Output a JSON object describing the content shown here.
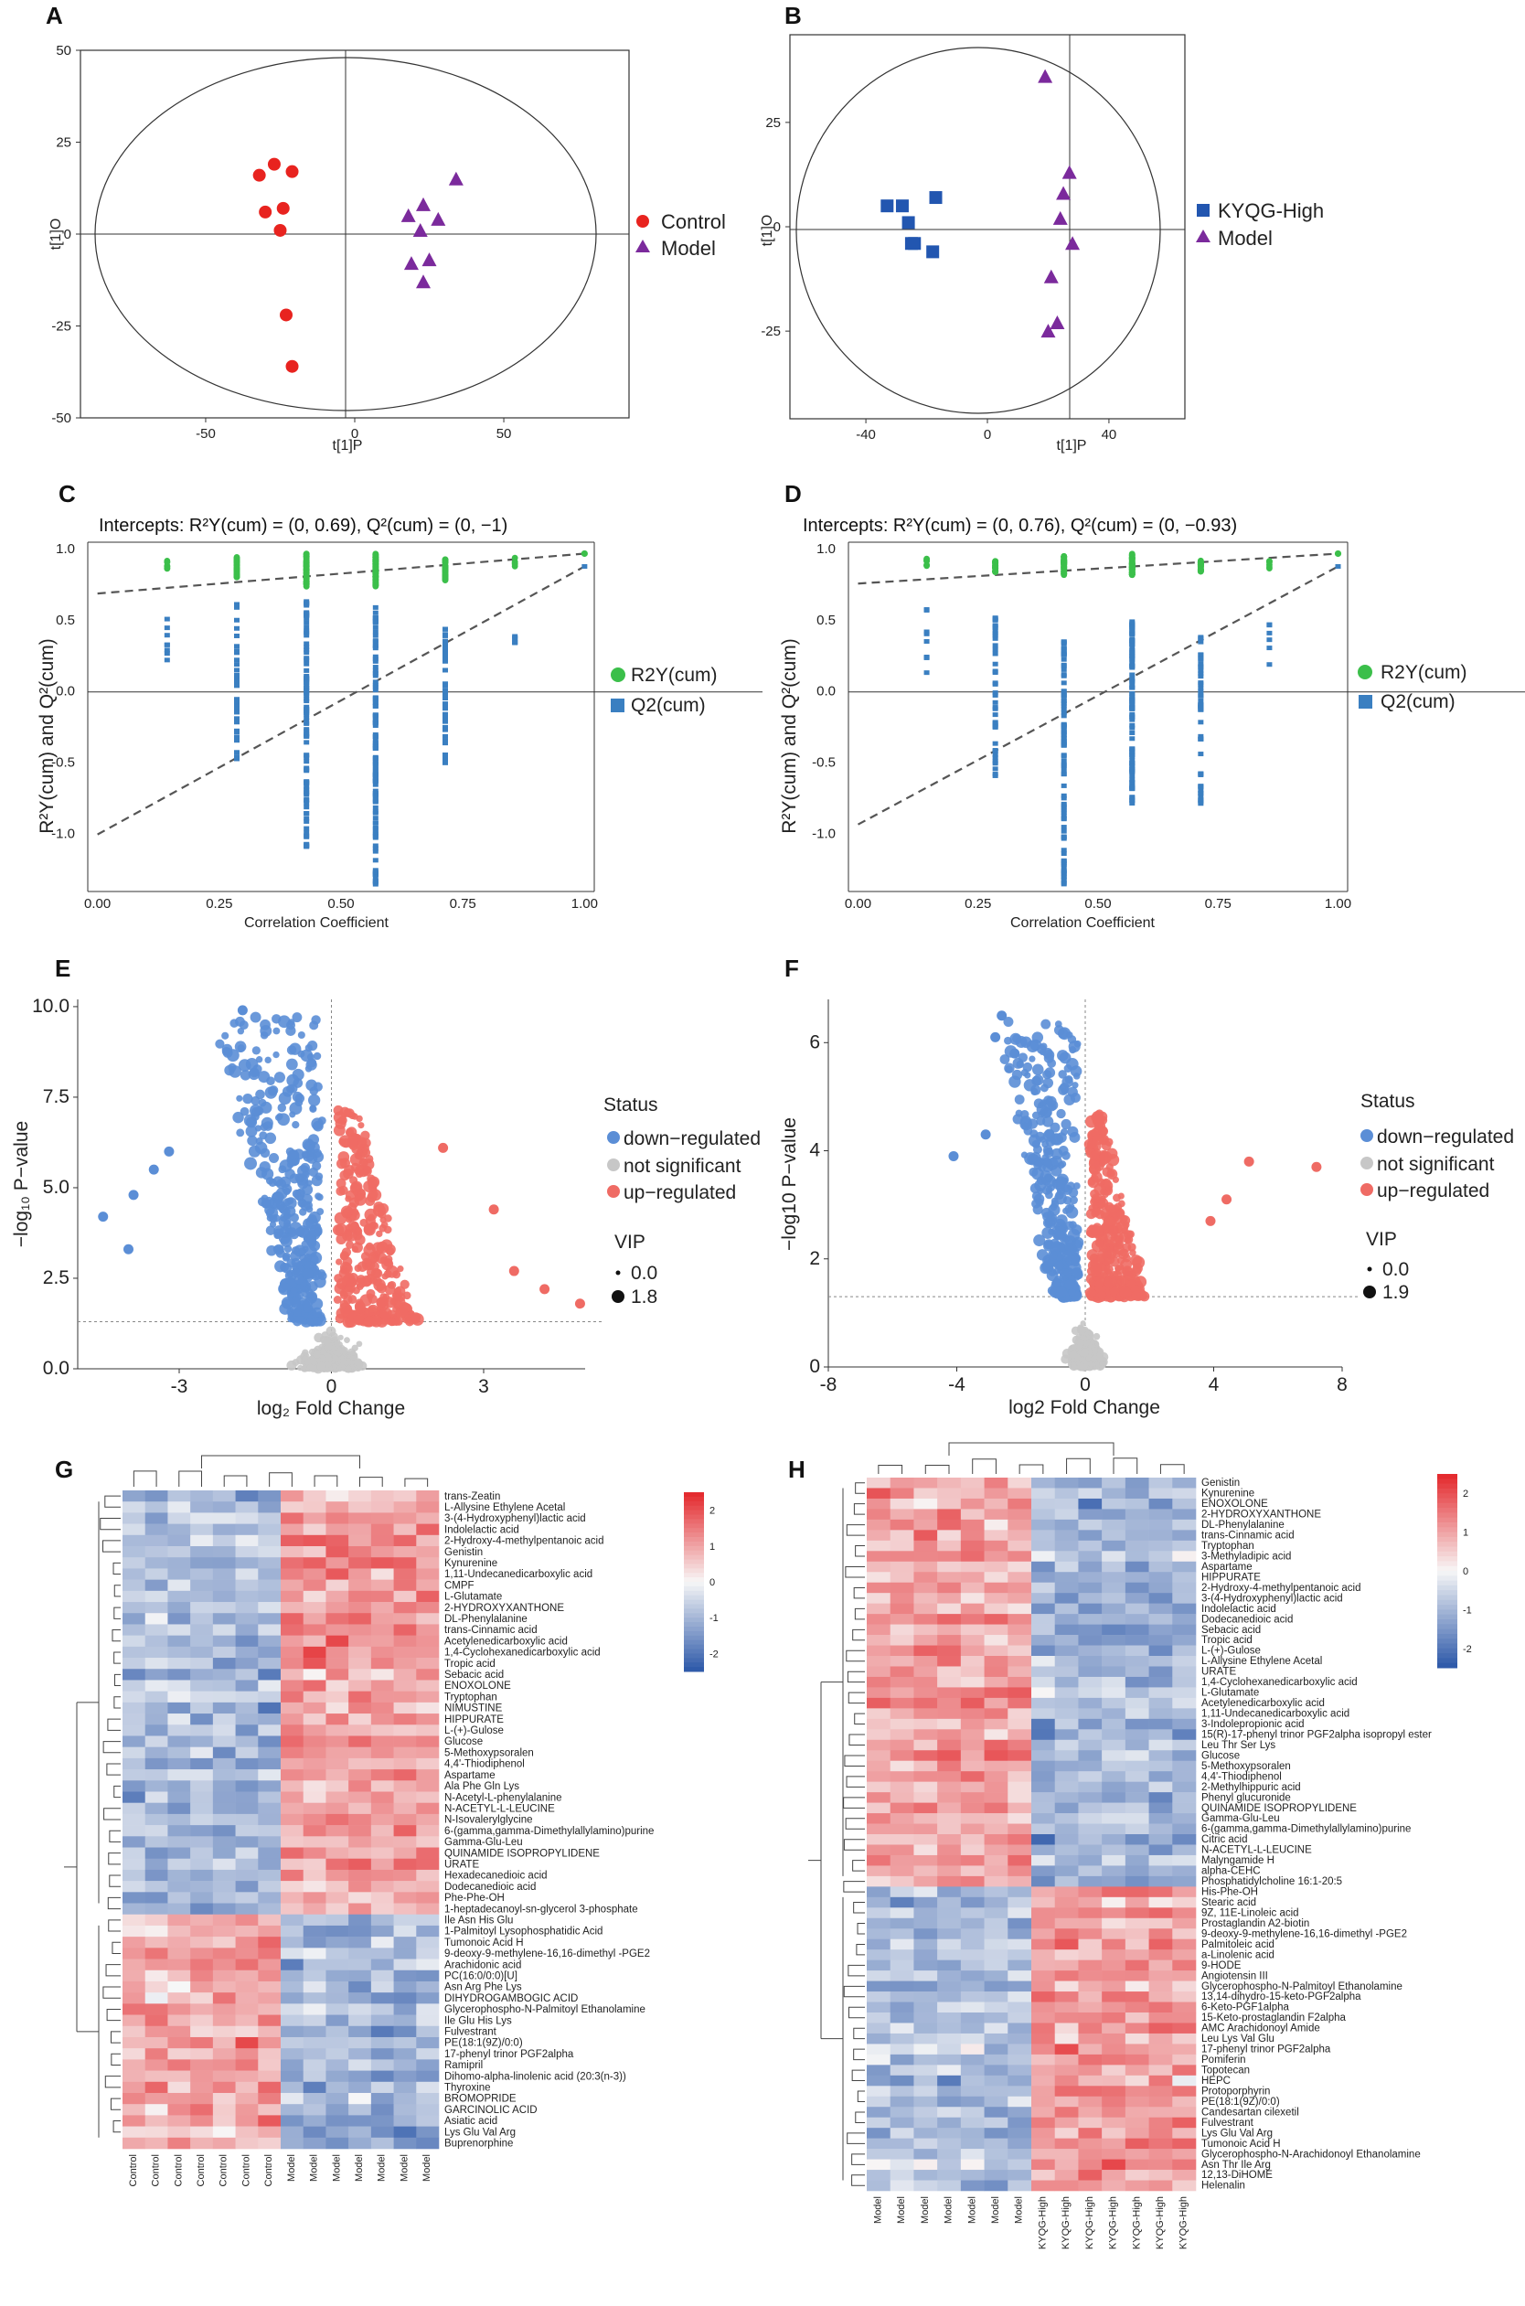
{
  "figure": {
    "panels": [
      "A",
      "B",
      "C",
      "D",
      "E",
      "F",
      "G",
      "H"
    ]
  },
  "colors": {
    "control": "#e8231f",
    "model": "#7b2a9c",
    "kyqg": "#2256b0",
    "r2y": "#3bbf4a",
    "q2": "#3a7fc1",
    "down": "#5b8ed6",
    "ns": "#c7c7c7",
    "up": "#ef6b64",
    "heat_high": "#e3262a",
    "heat_mid": "#f7f7f7",
    "heat_low": "#2b57a8"
  },
  "chart_data": [
    {
      "id": "A",
      "type": "scatter",
      "xlabel": "t[1]P",
      "ylabel": "t[1]O",
      "xlim": [
        -92,
        92
      ],
      "ylim": [
        -50,
        50
      ],
      "xticks": [
        "-50",
        "0",
        "50"
      ],
      "yticks": [
        "50",
        "25",
        "0",
        "-25",
        "-50"
      ],
      "series": [
        {
          "name": "Control",
          "marker": "circle",
          "points": [
            [
              -27,
              19
            ],
            [
              -21,
              17
            ],
            [
              -32,
              16
            ],
            [
              -24,
              7
            ],
            [
              -30,
              6
            ],
            [
              -25,
              1
            ],
            [
              -23,
              -22
            ],
            [
              -21,
              -36
            ]
          ]
        },
        {
          "name": "Model",
          "marker": "triangle",
          "points": [
            [
              34,
              15
            ],
            [
              23,
              8
            ],
            [
              18,
              5
            ],
            [
              28,
              4
            ],
            [
              22,
              1
            ],
            [
              19,
              -8
            ],
            [
              25,
              -7
            ],
            [
              23,
              -13
            ]
          ]
        }
      ]
    },
    {
      "id": "B",
      "type": "scatter",
      "xlabel": "t[1]P",
      "ylabel": "t[1]O",
      "xlim": [
        -65,
        65
      ],
      "ylim": [
        -46,
        46
      ],
      "xticks": [
        "-40",
        "0",
        "40"
      ],
      "yticks": [
        "25",
        "0",
        "-25"
      ],
      "series": [
        {
          "name": "KYQG-High",
          "marker": "square",
          "points": [
            [
              -33,
              5
            ],
            [
              -28,
              5
            ],
            [
              -17,
              7
            ],
            [
              -26,
              1
            ],
            [
              -25,
              -4
            ],
            [
              -24,
              -4
            ],
            [
              -18,
              -6
            ]
          ]
        },
        {
          "name": "Model",
          "marker": "triangle",
          "points": [
            [
              19,
              36
            ],
            [
              27,
              13
            ],
            [
              25,
              8
            ],
            [
              24,
              2
            ],
            [
              28,
              -4
            ],
            [
              21,
              -12
            ],
            [
              23,
              -23
            ],
            [
              20,
              -25
            ]
          ]
        }
      ]
    },
    {
      "id": "C",
      "type": "scatter",
      "title": "Intercepts: R²Y(cum) = (0, 0.69), Q²(cum) = (0, −1)",
      "xlabel": "Correlation Coefficient",
      "ylabel": "R²Y(cum) and Q²(cum)",
      "xlim": [
        -0.02,
        1.02
      ],
      "ylim": [
        -1.4,
        1.05
      ],
      "xticks": [
        "0.00",
        "0.25",
        "0.50",
        "0.75",
        "1.00"
      ],
      "yticks": [
        "1.0",
        "0.5",
        "0.0",
        "-0.5",
        "-1.0"
      ],
      "intercepts": {
        "r2y": 0.69,
        "q2": -1.0
      },
      "series": [
        {
          "name": "R2Y(cum)"
        },
        {
          "name": "Q2(cum)"
        }
      ]
    },
    {
      "id": "D",
      "type": "scatter",
      "title": "Intercepts: R²Y(cum) = (0, 0.76), Q²(cum) = (0, −0.93)",
      "xlabel": "Correlation Coefficient",
      "ylabel": "R²Y(cum) and Q²(cum)",
      "xlim": [
        -0.02,
        1.02
      ],
      "ylim": [
        -1.4,
        1.05
      ],
      "xticks": [
        "0.00",
        "0.25",
        "0.50",
        "0.75",
        "1.00"
      ],
      "yticks": [
        "1.0",
        "0.5",
        "0.0",
        "-0.5",
        "-1.0"
      ],
      "intercepts": {
        "r2y": 0.76,
        "q2": -0.93
      },
      "series": [
        {
          "name": "R2Y(cum)"
        },
        {
          "name": "Q2(cum)"
        }
      ]
    },
    {
      "id": "E",
      "type": "scatter",
      "xlabel": "log₂ Fold Change",
      "ylabel": "−log₁₀ P−value",
      "xlim": [
        -5,
        5
      ],
      "ylim": [
        0,
        10.2
      ],
      "xticks": [
        "-3",
        "0",
        "3"
      ],
      "yticks": [
        "10.0",
        "7.5",
        "5.0",
        "2.5",
        "0.0"
      ],
      "threshold": 1.3,
      "series": [
        {
          "name": "down−regulated"
        },
        {
          "name": "not significant"
        },
        {
          "name": "up−regulated"
        }
      ],
      "vip": [
        "0.0",
        "1.8"
      ]
    },
    {
      "id": "F",
      "type": "scatter",
      "xlabel": "log2 Fold Change",
      "ylabel": "−log10 P−value",
      "xlim": [
        -8,
        8
      ],
      "ylim": [
        0,
        6.8
      ],
      "xticks": [
        "-8",
        "-4",
        "0",
        "4",
        "8"
      ],
      "yticks": [
        "6",
        "4",
        "2",
        "0"
      ],
      "threshold": 1.3,
      "series": [
        {
          "name": "down−regulated"
        },
        {
          "name": "not significant"
        },
        {
          "name": "up−regulated"
        }
      ],
      "vip": [
        "0.0",
        "1.9"
      ]
    },
    {
      "id": "G",
      "type": "heatmap",
      "scale": {
        "min": -2.5,
        "max": 2.5,
        "ticks": [
          "2",
          "1",
          "0",
          "-1",
          "-2"
        ]
      },
      "columns": [
        "Control",
        "Control",
        "Control",
        "Control",
        "Control",
        "Control",
        "Control",
        "Model",
        "Model",
        "Model",
        "Model",
        "Model",
        "Model",
        "Model"
      ],
      "up_count": 38,
      "rows": [
        "trans-Zeatin",
        "L-Allysine Ethylene Acetal",
        "3-(4-Hydroxyphenyl)lactic acid",
        "Indolelactic acid",
        "2-Hydroxy-4-methylpentanoic acid",
        "Genistin",
        "Kynurenine",
        "1,11-Undecanedicarboxylic acid",
        "CMPF",
        "L-Glutamate",
        "2-HYDROXYXANTHONE",
        "DL-Phenylalanine",
        "trans-Cinnamic acid",
        "Acetylenedicarboxylic acid",
        "1,4-Cyclohexanedicarboxylic acid",
        "Tropic acid",
        "Sebacic acid",
        "ENOXOLONE",
        "Tryptophan",
        "NIMUSTINE",
        "HIPPURATE",
        "L-(+)-Gulose",
        "Glucose",
        "5-Methoxypsoralen",
        "4,4'-Thiodiphenol",
        "Aspartame",
        "Ala Phe Gln Lys",
        "N-Acetyl-L-phenylalanine",
        "N-ACETYL-L-LEUCINE",
        "N-Isovalerylglycine",
        "6-(gamma,gamma-Dimethylallylamino)purine",
        "Gamma-Glu-Leu",
        "QUINAMIDE ISOPROPYLIDENE",
        "URATE",
        "Hexadecanedioic acid",
        "Dodecanedioic acid",
        "Phe-Phe-OH",
        "1-heptadecanoyl-sn-glycerol 3-phosphate",
        "Ile Asn His Glu",
        "1-Palmitoyl Lysophosphatidic Acid",
        "Tumonoic Acid H",
        "9-deoxy-9-methylene-16,16-dimethyl -PGE2",
        "Arachidonic acid",
        "PC(16:0/0:0)[U]",
        "Asn Arg Phe Lys",
        "DIHYDROGAMBOGIC ACID",
        "Glycerophospho-N-Palmitoyl Ethanolamine",
        "Ile Glu His Lys",
        "Fulvestrant",
        "PE(18:1(9Z)/0:0)",
        "17-phenyl trinor PGF2alpha",
        "Ramipril",
        "Dihomo-alpha-linolenic acid (20:3(n-3))",
        "Thyroxine",
        "BROMOPRIDE",
        "GARCINOLIC ACID",
        "Asiatic acid",
        "Lys Glu Val Arg",
        "Buprenorphine"
      ]
    },
    {
      "id": "H",
      "type": "heatmap",
      "scale": {
        "min": -2.5,
        "max": 2.5,
        "ticks": [
          "2",
          "1",
          "0",
          "-1",
          "-2"
        ]
      },
      "columns": [
        "Model",
        "Model",
        "Model",
        "Model",
        "Model",
        "Model",
        "Model",
        "KYQG-High",
        "KYQG-High",
        "KYQG-High",
        "KYQG-High",
        "KYQG-High",
        "KYQG-High",
        "KYQG-High"
      ],
      "up_count": 39,
      "rows": [
        "Genistin",
        "Kynurenine",
        "ENOXOLONE",
        "2-HYDROXYXANTHONE",
        "DL-Phenylalanine",
        "trans-Cinnamic acid",
        "Tryptophan",
        "3-Methyladipic acid",
        "Aspartame",
        "HIPPURATE",
        "2-Hydroxy-4-methylpentanoic acid",
        "3-(4-Hydroxyphenyl)lactic acid",
        "Indolelactic acid",
        "Dodecanedioic acid",
        "Sebacic acid",
        "Tropic acid",
        "L-(+)-Gulose",
        "L-Allysine Ethylene Acetal",
        "URATE",
        "1,4-Cyclohexanedicarboxylic acid",
        "L-Glutamate",
        "Acetylenedicarboxylic acid",
        "1,11-Undecanedicarboxylic acid",
        "3-Indolepropionic acid",
        "15(R)-17-phenyl trinor PGF2alpha isopropyl ester",
        "Leu Thr Ser Lys",
        "Glucose",
        "5-Methoxypsoralen",
        "4,4'-Thiodiphenol",
        "2-Methylhippuric acid",
        "Phenyl glucuronide",
        "QUINAMIDE ISOPROPYLIDENE",
        "Gamma-Glu-Leu",
        "6-(gamma,gamma-Dimethylallylamino)purine",
        "Citric acid",
        "N-ACETYL-L-LEUCINE",
        "Malyngamide H",
        "alpha-CEHC",
        "Phosphatidylcholine 16:1-20:5",
        "His-Phe-OH",
        "Stearic acid",
        "9Z, 11E-Linoleic acid",
        "Prostaglandin A2-biotin",
        "9-deoxy-9-methylene-16,16-dimethyl -PGE2",
        "Palmitoleic acid",
        "a-Linolenic acid",
        "9-HODE",
        "Angiotensin III",
        "Glycerophospho-N-Palmitoyl Ethanolamine",
        "13,14-dihydro-15-keto-PGF2alpha",
        "6-Keto-PGF1alpha",
        "15-Keto-prostaglandin F2alpha",
        "AMC Arachidonoyl Amide",
        "Leu Lys Val Glu",
        "17-phenyl trinor PGF2alpha",
        "Pomiferin",
        "Topotecan",
        "HEPC",
        "Protoporphyrin",
        "PE(18:1(9Z)/0:0)",
        "Candesartan cilexetil",
        "Fulvestrant",
        "Lys Glu Val Arg",
        "Tumonoic Acid H",
        "Glycerophospho-N-Arachidonoyl Ethanolamine",
        "Asn Thr Ile Arg",
        "12,13-DiHOME",
        "Helenalin"
      ]
    }
  ]
}
